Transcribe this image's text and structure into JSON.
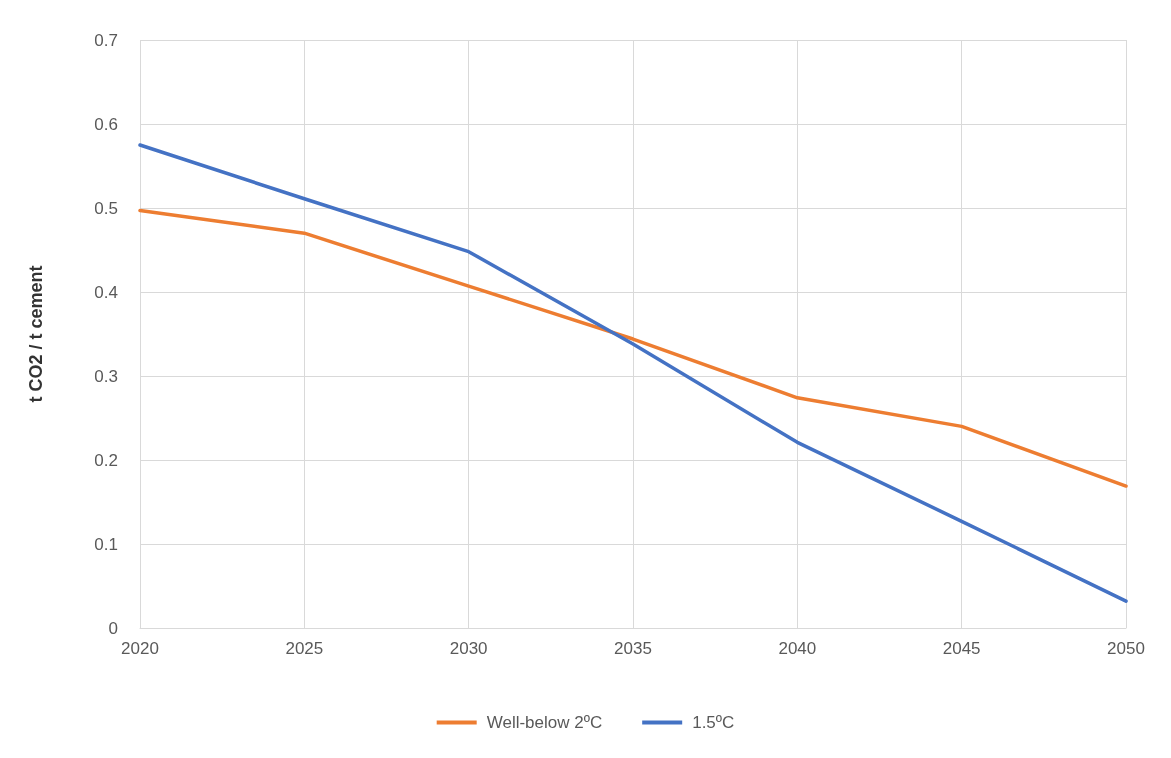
{
  "chart_data": {
    "type": "line",
    "ylabel": "t CO2 / t cement",
    "x": [
      2020,
      2025,
      2030,
      2035,
      2040,
      2045,
      2050
    ],
    "series": [
      {
        "name": "Well-below 2ºC",
        "color": "#ed7d31",
        "values": [
          0.497,
          0.47,
          0.407,
          0.344,
          0.274,
          0.24,
          0.169
        ]
      },
      {
        "name": "1.5ºC",
        "color": "#4472c4",
        "values": [
          0.575,
          0.511,
          0.448,
          0.338,
          0.221,
          0.127,
          0.032
        ]
      }
    ],
    "xlim": [
      2020,
      2050
    ],
    "xticks": [
      2020,
      2025,
      2030,
      2035,
      2040,
      2045,
      2050
    ],
    "ylim": [
      0,
      0.7
    ],
    "yticks": [
      0,
      0.1,
      0.2,
      0.3,
      0.4,
      0.5,
      0.6,
      0.7
    ],
    "grid": true,
    "legend": "bottom",
    "marker": "none",
    "line_style": "solid"
  }
}
